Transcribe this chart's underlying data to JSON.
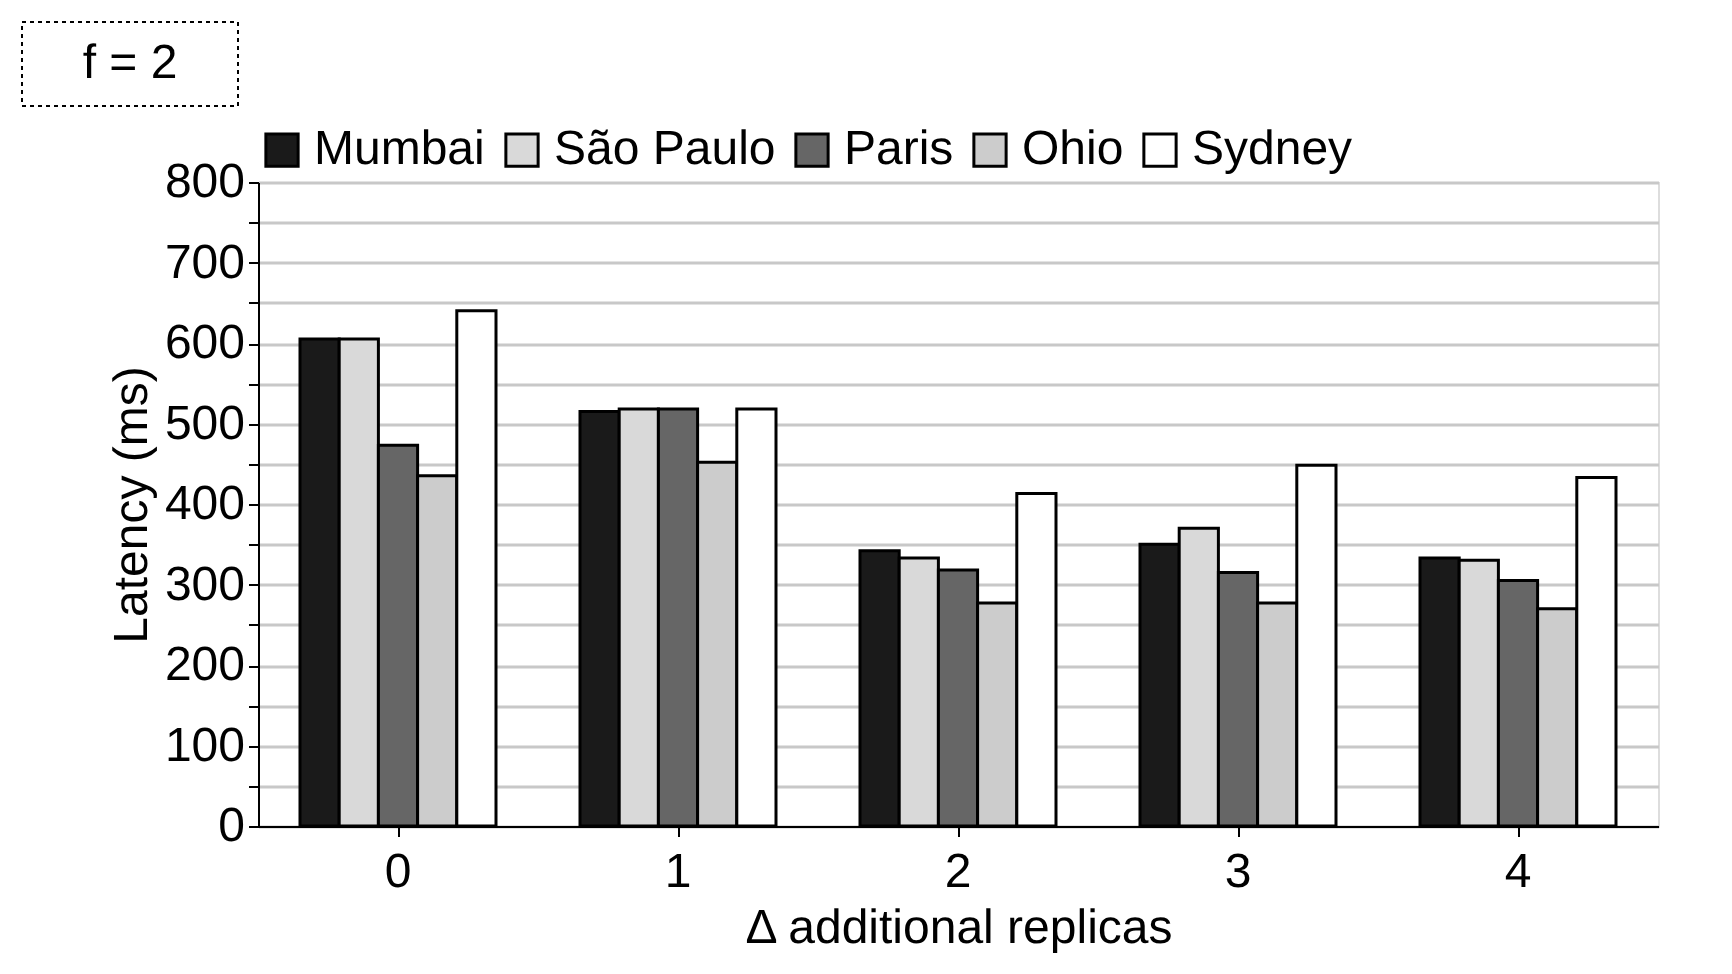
{
  "chart_data": {
    "type": "bar",
    "xlabel": "Δ additional replicas",
    "ylabel": "Latency (ms)",
    "annotations": [
      "f = 2"
    ],
    "categories": [
      "0",
      "1",
      "2",
      "3",
      "4"
    ],
    "series": [
      {
        "name": "Mumbai",
        "color": "#1a1a1a",
        "values": [
          605,
          515,
          342,
          350,
          333
        ]
      },
      {
        "name": "São Paulo",
        "color": "#d9d9d9",
        "values": [
          605,
          518,
          333,
          370,
          330
        ]
      },
      {
        "name": "Paris",
        "color": "#666666",
        "values": [
          473,
          518,
          318,
          315,
          305
        ]
      },
      {
        "name": "Ohio",
        "color": "#cccccc",
        "values": [
          435,
          452,
          277,
          277,
          270
        ]
      },
      {
        "name": "Sydney",
        "color": "#ffffff",
        "values": [
          640,
          518,
          413,
          448,
          433
        ]
      }
    ],
    "ylim": [
      0,
      800
    ],
    "yticks": [
      0,
      {
        "value": 50,
        "label": null
      },
      100,
      {
        "value": 150,
        "label": null
      },
      200,
      {
        "value": 250,
        "label": null
      },
      300,
      {
        "value": 350,
        "label": null
      },
      400,
      {
        "value": 450,
        "label": null
      },
      500,
      {
        "value": 550,
        "label": null
      },
      600,
      {
        "value": 650,
        "label": null
      },
      700,
      {
        "value": 750,
        "label": null
      },
      800
    ],
    "grid": "y",
    "legend": "top"
  }
}
